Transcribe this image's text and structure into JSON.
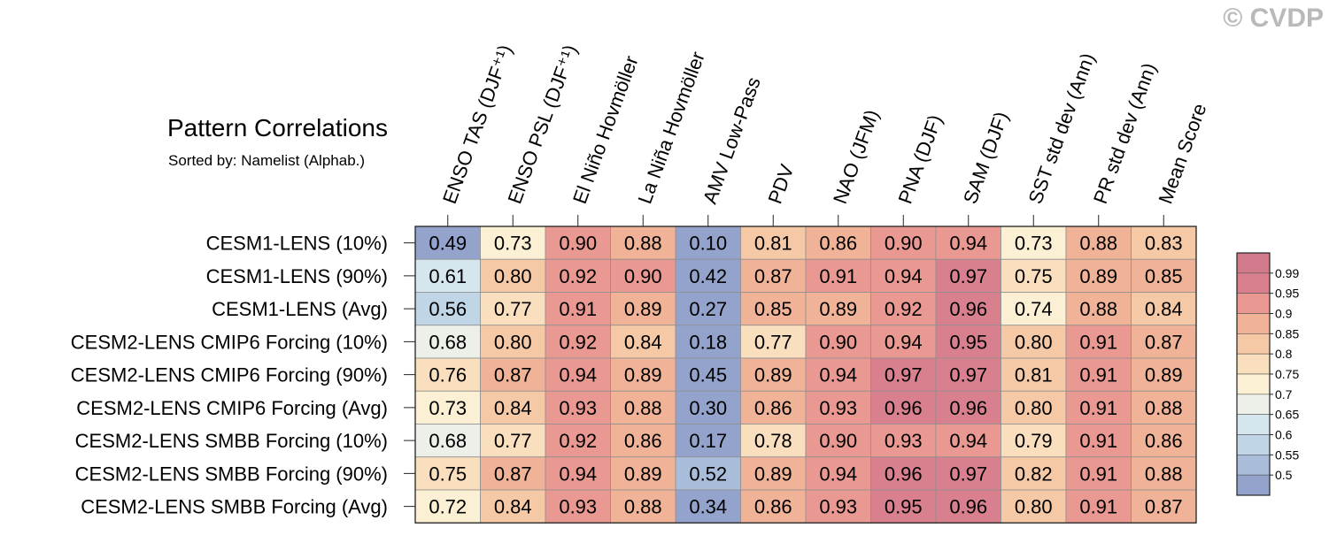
{
  "watermark": "© CVDP",
  "chart_data": {
    "type": "heatmap",
    "title": "Pattern Correlations",
    "subtitle": "Sorted by: Namelist (Alphab.)",
    "columns": [
      "ENSO TAS (DJF⁺¹)",
      "ENSO PSL (DJF⁺¹)",
      "El Niño Hovmöller",
      "La Niña Hovmöller",
      "AMV Low-Pass",
      "PDV",
      "NAO (JFM)",
      "PNA (DJF)",
      "SAM (DJF)",
      "SST std dev (Ann)",
      "PR std dev (Ann)",
      "Mean Score"
    ],
    "rows": [
      "CESM1-LENS (10%)",
      "CESM1-LENS (90%)",
      "CESM1-LENS (Avg)",
      "CESM2-LENS CMIP6 Forcing (10%)",
      "CESM2-LENS CMIP6 Forcing (90%)",
      "CESM2-LENS CMIP6 Forcing (Avg)",
      "CESM2-LENS SMBB Forcing (10%)",
      "CESM2-LENS SMBB Forcing (90%)",
      "CESM2-LENS SMBB Forcing (Avg)"
    ],
    "values": [
      [
        "0.49",
        "0.73",
        "0.90",
        "0.88",
        "0.10",
        "0.81",
        "0.86",
        "0.90",
        "0.94",
        "0.73",
        "0.88",
        "0.83"
      ],
      [
        "0.61",
        "0.80",
        "0.92",
        "0.90",
        "0.42",
        "0.87",
        "0.91",
        "0.94",
        "0.97",
        "0.75",
        "0.89",
        "0.85"
      ],
      [
        "0.56",
        "0.77",
        "0.91",
        "0.89",
        "0.27",
        "0.85",
        "0.89",
        "0.92",
        "0.96",
        "0.74",
        "0.88",
        "0.84"
      ],
      [
        "0.68",
        "0.80",
        "0.92",
        "0.84",
        "0.18",
        "0.77",
        "0.90",
        "0.94",
        "0.95",
        "0.80",
        "0.91",
        "0.87"
      ],
      [
        "0.76",
        "0.87",
        "0.94",
        "0.89",
        "0.45",
        "0.89",
        "0.94",
        "0.97",
        "0.97",
        "0.81",
        "0.91",
        "0.89"
      ],
      [
        "0.73",
        "0.84",
        "0.93",
        "0.88",
        "0.30",
        "0.86",
        "0.93",
        "0.96",
        "0.96",
        "0.80",
        "0.91",
        "0.88"
      ],
      [
        "0.68",
        "0.77",
        "0.92",
        "0.86",
        "0.17",
        "0.78",
        "0.90",
        "0.93",
        "0.94",
        "0.79",
        "0.91",
        "0.86"
      ],
      [
        "0.75",
        "0.87",
        "0.94",
        "0.89",
        "0.52",
        "0.89",
        "0.94",
        "0.96",
        "0.97",
        "0.82",
        "0.91",
        "0.88"
      ],
      [
        "0.72",
        "0.84",
        "0.93",
        "0.88",
        "0.34",
        "0.86",
        "0.93",
        "0.95",
        "0.96",
        "0.80",
        "0.91",
        "0.87"
      ]
    ],
    "colorbar": {
      "labels": [
        "0.99",
        "0.95",
        "0.9",
        "0.85",
        "0.8",
        "0.75",
        "0.7",
        "0.65",
        "0.6",
        "0.55",
        "0.5"
      ],
      "thresholds": [
        0.5,
        0.55,
        0.6,
        0.65,
        0.7,
        0.75,
        0.8,
        0.85,
        0.9,
        0.95,
        0.99
      ],
      "colors": [
        "#94a3cc",
        "#a9bcd9",
        "#c0d5e6",
        "#d6e6ef",
        "#ecf0e8",
        "#fbf0d3",
        "#fadfbf",
        "#f6c9a6",
        "#f0b397",
        "#e99991",
        "#d8808e",
        "#d17a8b"
      ]
    }
  }
}
